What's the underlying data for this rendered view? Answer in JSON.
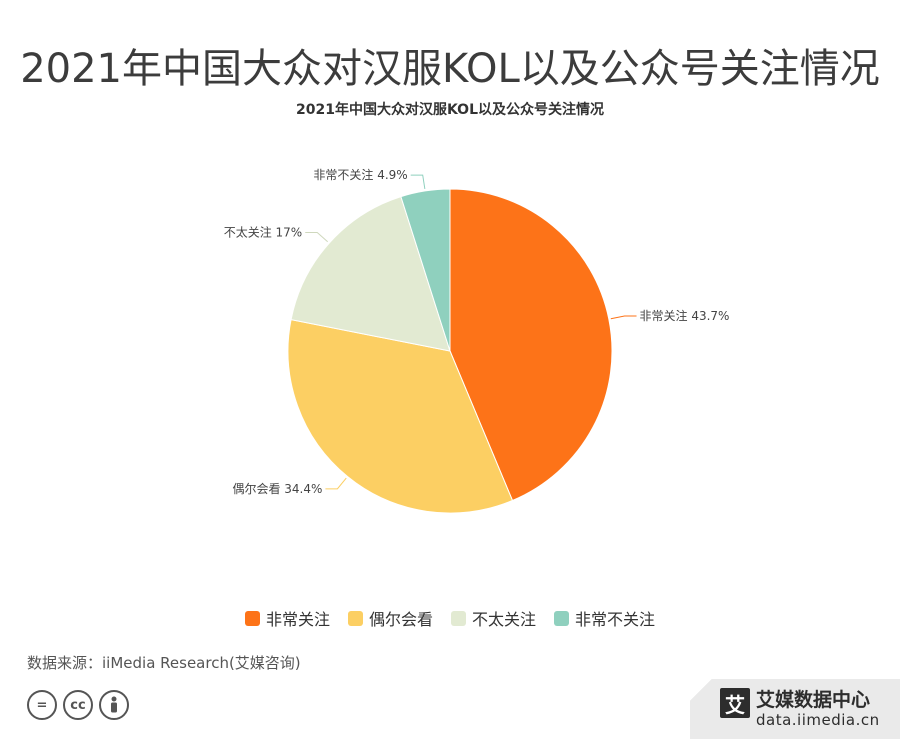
{
  "header": {
    "title": "2021年中国大众对汉服KOL以及公众号关注情况"
  },
  "chart_data": {
    "type": "pie",
    "title": "2021年中国大众对汉服KOL以及公众号关注情况",
    "legend_position": "bottom",
    "slices": [
      {
        "name": "非常关注",
        "value": 43.7,
        "label": "43.7%",
        "color": "#fd7318"
      },
      {
        "name": "偶尔会看",
        "value": 34.4,
        "label": "34.4%",
        "color": "#fccf63"
      },
      {
        "name": "不太关注",
        "value": 17,
        "label": "17%",
        "color": "#e2ead2"
      },
      {
        "name": "非常不关注",
        "value": 4.9,
        "label": "4.9%",
        "color": "#8fd0be"
      }
    ]
  },
  "footer": {
    "source": "数据来源：iiMedia Research(艾媒咨询)",
    "cc_icons": [
      "equals-icon",
      "cc-icon",
      "person-icon"
    ],
    "cc_labels": [
      "=",
      "cc"
    ],
    "brand_logo": "艾",
    "brand_name": "艾媒数据中心",
    "brand_url": "data.iimedia.cn"
  }
}
